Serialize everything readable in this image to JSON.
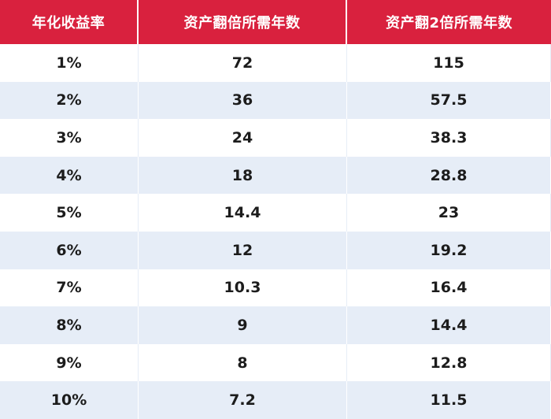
{
  "table": {
    "headers": [
      "年化收益率",
      "资产翻倍所需年数",
      "资产翻2倍所需年数"
    ],
    "rows": [
      {
        "rate": "1%",
        "double": "72",
        "double2": "115"
      },
      {
        "rate": "2%",
        "double": "36",
        "double2": "57.5"
      },
      {
        "rate": "3%",
        "double": "24",
        "double2": "38.3"
      },
      {
        "rate": "4%",
        "double": "18",
        "double2": "28.8"
      },
      {
        "rate": "5%",
        "double": "14.4",
        "double2": "23"
      },
      {
        "rate": "6%",
        "double": "12",
        "double2": "19.2"
      },
      {
        "rate": "7%",
        "double": "10.3",
        "double2": "16.4"
      },
      {
        "rate": "8%",
        "double": "9",
        "double2": "14.4"
      },
      {
        "rate": "9%",
        "double": "8",
        "double2": "12.8"
      },
      {
        "rate": "10%",
        "double": "7.2",
        "double2": "11.5"
      }
    ]
  },
  "colors": {
    "header_bg": "#d9213e",
    "header_text": "#ffffff",
    "stripe_bg": "#e6edf7",
    "body_text": "#1c1c1c"
  }
}
